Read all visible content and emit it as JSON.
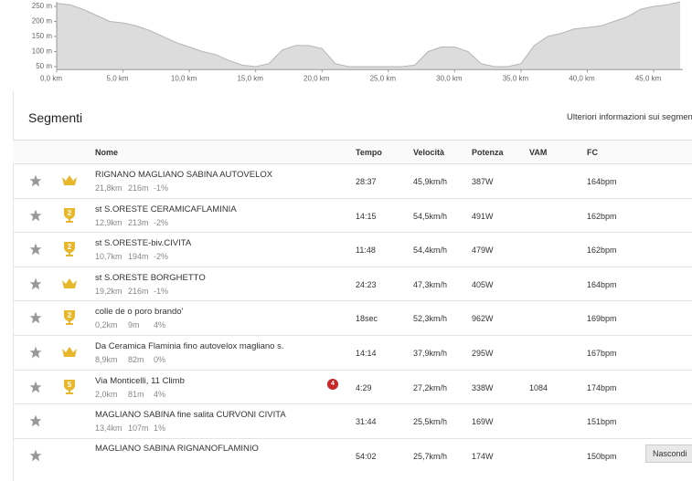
{
  "chart_data": {
    "type": "area",
    "x": [
      0,
      1,
      2,
      3,
      4,
      5,
      6,
      7,
      8,
      9,
      10,
      11,
      12,
      13,
      14,
      15,
      16,
      17,
      18,
      19,
      20,
      21,
      22,
      23,
      24,
      25,
      26,
      27,
      28,
      29,
      30,
      31,
      32,
      33,
      34,
      35,
      36,
      37,
      38,
      39,
      40,
      41,
      42,
      43,
      44,
      45,
      46,
      47
    ],
    "values": [
      260,
      255,
      240,
      220,
      200,
      195,
      185,
      170,
      150,
      130,
      115,
      100,
      90,
      70,
      55,
      50,
      60,
      105,
      120,
      120,
      110,
      60,
      50,
      50,
      50,
      50,
      50,
      55,
      100,
      115,
      115,
      100,
      60,
      50,
      50,
      60,
      120,
      150,
      160,
      175,
      180,
      185,
      200,
      215,
      240,
      250,
      255,
      265
    ],
    "color": "#dcdcdc",
    "xlim": [
      0,
      47.2
    ],
    "ylim": [
      40,
      265
    ],
    "xticks": [
      {
        "value": 0,
        "label": "0,0 km"
      },
      {
        "value": 5,
        "label": "5,0 km"
      },
      {
        "value": 10,
        "label": "10,0 km"
      },
      {
        "value": 15,
        "label": "15,0 km"
      },
      {
        "value": 20,
        "label": "20,0 km"
      },
      {
        "value": 25,
        "label": "25,0 km"
      },
      {
        "value": 30,
        "label": "30,0 km"
      },
      {
        "value": 35,
        "label": "35,0 km"
      },
      {
        "value": 40,
        "label": "40,0 km"
      },
      {
        "value": 45,
        "label": "45,0 km"
      }
    ],
    "yticks": [
      {
        "value": 50,
        "label": "50 m"
      },
      {
        "value": 100,
        "label": "100 m"
      },
      {
        "value": 150,
        "label": "150 m"
      },
      {
        "value": 200,
        "label": "200 m"
      },
      {
        "value": 250,
        "label": "250 m"
      }
    ]
  },
  "segments": {
    "title": "Segmenti",
    "more_link": "Ulteriori informazioni sui segmen",
    "headers": [
      "Nome",
      "Tempo",
      "Velocità",
      "Potenza",
      "VAM",
      "FC"
    ],
    "rows": [
      {
        "award": "crown",
        "name": "RIGNANO MAGLIANO SABINA AUTOVELOX",
        "distance": "21,8km",
        "elevation": "216m",
        "grade": "-1%",
        "time": "28:37",
        "speed": "45,9km/h",
        "power": "387W",
        "hr": "164bpm"
      },
      {
        "award": "trophy",
        "rank": "2",
        "name": "st S.ORESTE CERAMICAFLAMINIA",
        "distance": "12,9km",
        "elevation": "213m",
        "grade": "-2%",
        "time": "14:15",
        "speed": "54,5km/h",
        "power": "491W",
        "hr": "162bpm"
      },
      {
        "award": "trophy",
        "rank": "2",
        "name": "st S.ORESTE-biv.CIVITA",
        "distance": "10,7km",
        "elevation": "194m",
        "grade": "-2%",
        "time": "11:48",
        "speed": "54,4km/h",
        "power": "479W",
        "hr": "162bpm"
      },
      {
        "award": "crown",
        "name": "st S.ORESTE BORGHETTO",
        "distance": "19,2km",
        "elevation": "216m",
        "grade": "-1%",
        "time": "24:23",
        "speed": "47,3km/h",
        "power": "405W",
        "hr": "164bpm"
      },
      {
        "award": "trophy",
        "rank": "2",
        "name": "colle de o poro brando'",
        "distance": "0,2km",
        "elevation": "9m",
        "grade": "4%",
        "time": "18sec",
        "speed": "52,3km/h",
        "power": "962W",
        "hr": "169bpm"
      },
      {
        "award": "crown",
        "name": "Da Ceramica Flaminia fino autovelox magliano s.",
        "distance": "8,9km",
        "elevation": "82m",
        "grade": "0%",
        "time": "14:14",
        "speed": "37,9km/h",
        "power": "295W",
        "hr": "167bpm"
      },
      {
        "award": "trophy",
        "rank": "5",
        "name": "Via Monticelli, 11 Climb",
        "distance": "2,0km",
        "elevation": "81m",
        "grade": "4%",
        "badge": "4",
        "time": "4:29",
        "speed": "27,2km/h",
        "power": "338W",
        "vam": "1084",
        "hr": "174bpm"
      },
      {
        "name": "MAGLIANO SABINA fine salita CURVONI CIVITA",
        "distance": "13,4km",
        "elevation": "107m",
        "grade": "1%",
        "time": "31:44",
        "speed": "25,5km/h",
        "power": "169W",
        "hr": "151bpm"
      },
      {
        "name": "MAGLIANO SABINA RIGNANOFLAMINIO",
        "time": "54:02",
        "speed": "25,7km/h",
        "power": "174W",
        "hr": "150bpm"
      }
    ],
    "hide_button": "Nascondi"
  }
}
